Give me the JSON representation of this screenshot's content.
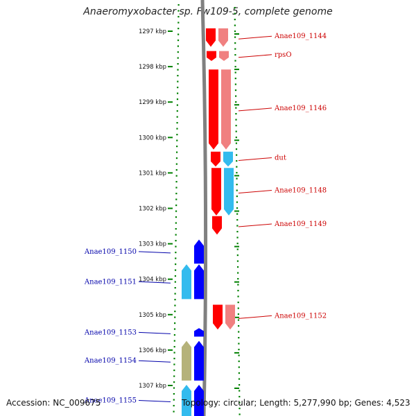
{
  "title": "Anaeromyxobacter sp. Fw109-5, complete genome",
  "accession": "Accession: NC_009675",
  "summary": "Topology: circular; Length: 5,277,990 bp; Genes: 4,523",
  "scale_unit": "kbp",
  "colors": {
    "forward_gene": "#ff0000",
    "forward_cds": "#f08080",
    "reverse_gene": "#0000ff",
    "reverse_cds": "#33bbee",
    "reverse_other": "#b5b27a",
    "forward_label": "#cc0000",
    "reverse_label": "#0000aa",
    "tick": "#008000",
    "backbone": "#808080"
  },
  "view": {
    "start_kbp": 1296.92,
    "end_kbp": 1307.98
  },
  "ticks": [
    1297,
    1298,
    1299,
    1300,
    1301,
    1302,
    1303,
    1304,
    1305,
    1306,
    1307
  ],
  "forward_genes": [
    {
      "name": "Anae109_1144",
      "start": 1296.92,
      "end": 1297.44,
      "has_cds": true
    },
    {
      "name": "rpsO",
      "start": 1297.56,
      "end": 1297.84,
      "has_cds": true
    },
    {
      "name": "Anae109_1146",
      "start": 1298.08,
      "end": 1300.34,
      "has_cds": true
    },
    {
      "name": "dut",
      "start": 1300.4,
      "end": 1300.82,
      "has_cds": true
    },
    {
      "name": "Anae109_1148",
      "start": 1300.86,
      "end": 1302.2,
      "has_cds": true
    },
    {
      "name": "Anae109_1149",
      "start": 1302.22,
      "end": 1302.74,
      "has_cds": false
    },
    {
      "name": "Anae109_1152",
      "start": 1304.72,
      "end": 1305.42,
      "has_cds": true
    }
  ],
  "reverse_genes": [
    {
      "name": "Anae109_1150",
      "start": 1302.88,
      "end": 1303.56,
      "cds": "none"
    },
    {
      "name": "Anae109_1151",
      "start": 1303.58,
      "end": 1304.56,
      "cds": "cds"
    },
    {
      "name": "Anae109_1153",
      "start": 1305.38,
      "end": 1305.62,
      "cds": "none"
    },
    {
      "name": "Anae109_1154",
      "start": 1305.74,
      "end": 1306.86,
      "cds": "other"
    },
    {
      "name": "Anae109_1155",
      "start": 1306.98,
      "end": 1307.98,
      "cds": "cds"
    }
  ]
}
